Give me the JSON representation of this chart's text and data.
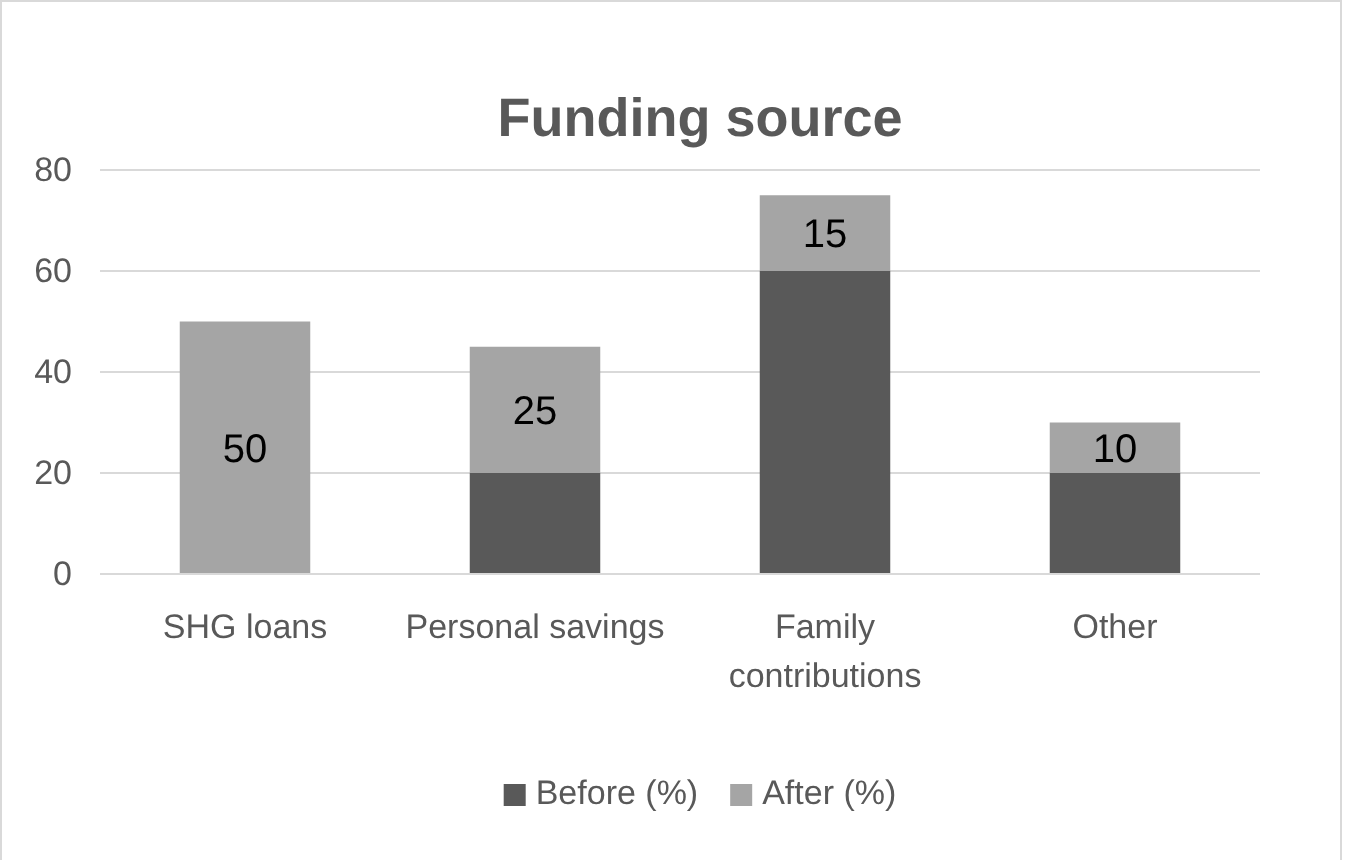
{
  "chart_data": {
    "type": "bar",
    "title": "Funding source",
    "categories": [
      "SHG loans",
      "Personal savings",
      "Family contributions",
      "Other"
    ],
    "stacked": true,
    "series": [
      {
        "name": "Before (%)",
        "color": "#595959",
        "values": [
          0,
          20,
          60,
          20
        ]
      },
      {
        "name": "After (%)",
        "color": "#a5a5a5",
        "values": [
          50,
          25,
          15,
          10
        ],
        "value_labels": [
          "50",
          "25",
          "15",
          "10"
        ]
      }
    ],
    "ylim": [
      0,
      80
    ],
    "yticks": [
      0,
      20,
      40,
      60,
      80
    ],
    "grid": "y",
    "legend": "bottom"
  }
}
